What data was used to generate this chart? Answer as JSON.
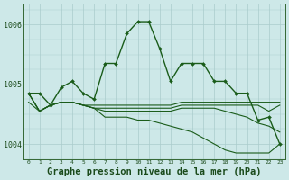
{
  "background_color": "#cde8e8",
  "grid_color_major": "#aacccc",
  "grid_color_minor": "#bbdddd",
  "line_color": "#1a5c1a",
  "xlabel": "Graphe pression niveau de la mer (hPa)",
  "xlabel_fontsize": 7.5,
  "xlim": [
    -0.5,
    23.5
  ],
  "ylim": [
    1003.75,
    1006.35
  ],
  "yticks": [
    1004,
    1005,
    1006
  ],
  "xticks": [
    0,
    1,
    2,
    3,
    4,
    5,
    6,
    7,
    8,
    9,
    10,
    11,
    12,
    13,
    14,
    15,
    16,
    17,
    18,
    19,
    20,
    21,
    22,
    23
  ],
  "series": [
    {
      "y": [
        1004.85,
        1004.85,
        1004.65,
        1004.95,
        1005.05,
        1004.85,
        1004.75,
        1005.35,
        1005.35,
        1005.85,
        1006.05,
        1006.05,
        1005.6,
        1005.05,
        1005.35,
        1005.35,
        1005.35,
        1005.05,
        1005.05,
        1004.85,
        1004.85,
        1004.4,
        1004.45,
        1004.0
      ],
      "marker": true,
      "lw": 1.0
    },
    {
      "y": [
        1004.7,
        1004.55,
        1004.65,
        1004.7,
        1004.7,
        1004.65,
        1004.65,
        1004.65,
        1004.65,
        1004.65,
        1004.65,
        1004.65,
        1004.65,
        1004.65,
        1004.7,
        1004.7,
        1004.7,
        1004.7,
        1004.7,
        1004.7,
        1004.7,
        1004.7,
        1004.7,
        1004.7
      ],
      "marker": false,
      "lw": 0.8
    },
    {
      "y": [
        1004.85,
        1004.55,
        1004.65,
        1004.7,
        1004.7,
        1004.65,
        1004.6,
        1004.6,
        1004.6,
        1004.6,
        1004.6,
        1004.6,
        1004.6,
        1004.6,
        1004.65,
        1004.65,
        1004.65,
        1004.65,
        1004.65,
        1004.65,
        1004.65,
        1004.65,
        1004.55,
        1004.65
      ],
      "marker": false,
      "lw": 0.8
    },
    {
      "y": [
        1004.85,
        1004.55,
        1004.65,
        1004.7,
        1004.7,
        1004.65,
        1004.6,
        1004.55,
        1004.55,
        1004.55,
        1004.55,
        1004.55,
        1004.55,
        1004.55,
        1004.6,
        1004.6,
        1004.6,
        1004.6,
        1004.55,
        1004.5,
        1004.45,
        1004.35,
        1004.3,
        1004.2
      ],
      "marker": false,
      "lw": 0.8
    },
    {
      "y": [
        1004.85,
        1004.55,
        1004.65,
        1004.7,
        1004.7,
        1004.65,
        1004.6,
        1004.45,
        1004.45,
        1004.45,
        1004.4,
        1004.4,
        1004.35,
        1004.3,
        1004.25,
        1004.2,
        1004.1,
        1004.0,
        1003.9,
        1003.85,
        1003.85,
        1003.85,
        1003.85,
        1004.0
      ],
      "marker": false,
      "lw": 0.8
    }
  ]
}
